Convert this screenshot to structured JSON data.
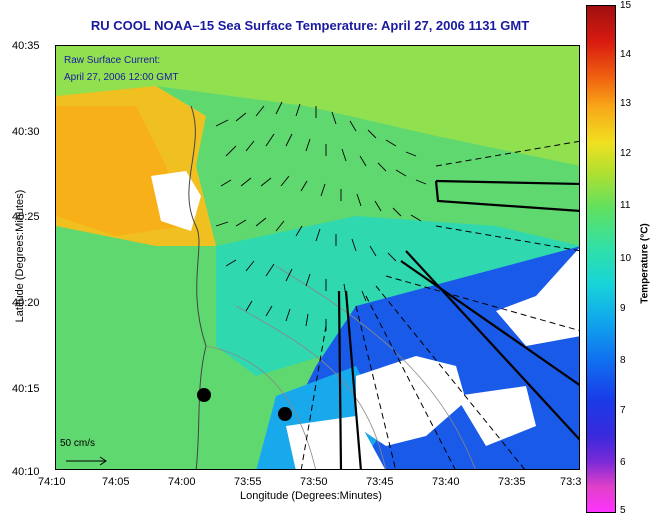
{
  "title": "RU COOL  NOAA–15  Sea Surface Temperature:  April 27, 2006 1131 GMT",
  "legend": {
    "line1": "Raw Surface Current:",
    "line2": "April 27, 2006 12:00 GMT"
  },
  "scale_label": "50 cm/s",
  "axes": {
    "xlabel": "Longitude (Degrees:Minutes)",
    "ylabel": "Latitude (Degrees:Minutes)",
    "xticks": [
      "74:10",
      "74:05",
      "74:00",
      "73:55",
      "73:50",
      "73:45",
      "73:40",
      "73:35",
      "73:3"
    ],
    "yticks": [
      "40:35",
      "40:30",
      "40:25",
      "40:20",
      "40:15",
      "40:10"
    ]
  },
  "colorbar": {
    "label": "Temperature (°C)",
    "ticks": [
      "15",
      "14",
      "13",
      "12",
      "11",
      "10",
      "9",
      "8",
      "7",
      "6",
      "5"
    ],
    "range": [
      5,
      15
    ]
  },
  "colors": {
    "title": "#1a1aa0",
    "land": "#ffffff",
    "warm": "#f0c020",
    "cool": "#1a4ae8"
  }
}
